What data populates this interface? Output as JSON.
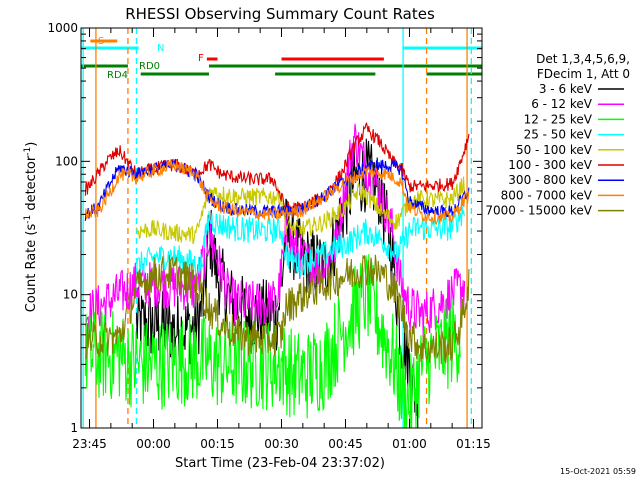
{
  "chart_data": {
    "type": "line",
    "title": "RHESSI Observing Summary Count Rates",
    "xlabel": "Start Time (23-Feb-04 23:37:02)",
    "ylabel_main": "Count Rate (s",
    "ylabel_sup1": "-1",
    "ylabel_mid": " detector",
    "ylabel_sup2": "-1",
    "ylabel_end": ")",
    "y_scale": "log",
    "ylim": [
      1,
      1000
    ],
    "xlim_min": [
      -17.0,
      77.0
    ],
    "x_tick_labels": [
      "23:45",
      "00:00",
      "00:15",
      "00:30",
      "00:45",
      "01:00",
      "01:15"
    ],
    "x_tick_minutes": [
      -15,
      0,
      15,
      30,
      45,
      60,
      75
    ],
    "y_tick_labels": [
      "1",
      "10",
      "100",
      "1000"
    ],
    "y_tick_values": [
      1,
      10,
      100,
      1000
    ],
    "timestamp": "15-Oct-2021 05:59",
    "legend": {
      "header": [
        "Det 1,3,4,5,6,9,",
        "FDecim 1, Att 0"
      ],
      "entries": [
        {
          "label": "3 - 6 keV",
          "color": "#000000"
        },
        {
          "label": "6 - 12 keV",
          "color": "#ff00ff"
        },
        {
          "label": "12 - 25 keV",
          "color": "#00ff00"
        },
        {
          "label": "25 - 50 keV",
          "color": "#00ffff"
        },
        {
          "label": "50 - 100 keV",
          "color": "#c8c800"
        },
        {
          "label": "100 - 300 keV",
          "color": "#e00000"
        },
        {
          "label": "300 - 800 keV",
          "color": "#0000ff"
        },
        {
          "label": "800 - 7000 keV",
          "color": "#ff8000"
        },
        {
          "label": "7000 - 15000 keV",
          "color": "#808000"
        }
      ]
    },
    "flag_labels": {
      "saa": "S",
      "night": "N",
      "flare": "F",
      "rd0": "RD0",
      "rd4": "RD4"
    },
    "flag_bars": {
      "saa": {
        "color": "#ff8000",
        "intervals": [
          [
            -14.8,
            -8.5
          ]
        ]
      },
      "night": {
        "color": "#00ffff",
        "intervals": [
          [
            -17.0,
            -3.5
          ],
          [
            58.5,
            77.0
          ]
        ]
      },
      "flare": {
        "color": "#ff0000",
        "intervals": [
          [
            12.5,
            15.0
          ],
          [
            30.0,
            54.0
          ]
        ]
      },
      "rd0": {
        "color": "#008000",
        "intervals": [
          [
            -17.0,
            -6.0
          ],
          [
            13.0,
            77.0
          ]
        ]
      },
      "rd4": {
        "color": "#008000",
        "intervals": [
          [
            -3.0,
            13.0
          ],
          [
            28.5,
            52.0
          ],
          [
            64.0,
            77.0
          ]
        ]
      }
    },
    "vertical_lines": [
      {
        "minute": -16.5,
        "color": "#00ffff",
        "style": "solid"
      },
      {
        "minute": -13.5,
        "color": "#ff8000",
        "style": "solid"
      },
      {
        "minute": -6.0,
        "color": "#ff8000",
        "style": "dashed"
      },
      {
        "minute": -4.0,
        "color": "#00ffff",
        "style": "dashed"
      },
      {
        "minute": 58.5,
        "color": "#00ffff",
        "style": "solid"
      },
      {
        "minute": 64.0,
        "color": "#ff8000",
        "style": "dashed"
      },
      {
        "minute": 73.5,
        "color": "#ff8000",
        "style": "solid"
      },
      {
        "minute": 74.5,
        "color": "#00ffff",
        "style": "dashed"
      }
    ],
    "series": [
      {
        "name": "3 - 6 keV",
        "color": "#000000",
        "noise": 0.28,
        "points": [
          [
            -4,
            6
          ],
          [
            0,
            6
          ],
          [
            5,
            5.5
          ],
          [
            10,
            5.6
          ],
          [
            12,
            10
          ],
          [
            13,
            30
          ],
          [
            15,
            14
          ],
          [
            18,
            9
          ],
          [
            22,
            7
          ],
          [
            26,
            7
          ],
          [
            29,
            7
          ],
          [
            30,
            12
          ],
          [
            31,
            30
          ],
          [
            35,
            18
          ],
          [
            40,
            16
          ],
          [
            42,
            22
          ],
          [
            44,
            40
          ],
          [
            47,
            70
          ],
          [
            50,
            80
          ],
          [
            53,
            60
          ],
          [
            56,
            20
          ],
          [
            58,
            5
          ],
          [
            60,
            3
          ],
          [
            61,
            2
          ],
          [
            62,
            1.6
          ]
        ]
      },
      {
        "name": "6 - 12 keV",
        "color": "#ff00ff",
        "noise": 0.18,
        "points": [
          [
            -16,
            7
          ],
          [
            -4,
            12
          ],
          [
            0,
            12
          ],
          [
            6,
            11.5
          ],
          [
            10,
            11
          ],
          [
            12,
            20
          ],
          [
            13,
            29
          ],
          [
            15,
            18
          ],
          [
            18,
            9
          ],
          [
            22,
            8.5
          ],
          [
            26,
            8.5
          ],
          [
            29,
            9
          ],
          [
            30,
            15
          ],
          [
            31,
            28
          ],
          [
            35,
            18
          ],
          [
            40,
            16
          ],
          [
            43,
            25
          ],
          [
            45,
            70
          ],
          [
            47,
            150
          ],
          [
            50,
            90
          ],
          [
            53,
            60
          ],
          [
            56,
            30
          ],
          [
            58,
            12
          ],
          [
            60,
            8
          ],
          [
            63,
            7
          ],
          [
            66,
            8
          ],
          [
            70,
            10
          ],
          [
            73,
            12
          ]
        ]
      },
      {
        "name": "12 - 25 keV",
        "color": "#00ff00",
        "noise": 0.35,
        "points": [
          [
            -16,
            3.5
          ],
          [
            -8,
            3.5
          ],
          [
            -4,
            3
          ],
          [
            0,
            3
          ],
          [
            6,
            3.2
          ],
          [
            10,
            3.3
          ],
          [
            13,
            3.2
          ],
          [
            16,
            3
          ],
          [
            20,
            3
          ],
          [
            26,
            3
          ],
          [
            30,
            3
          ],
          [
            33,
            2.5
          ],
          [
            36,
            2.5
          ],
          [
            40,
            3
          ],
          [
            45,
            6
          ],
          [
            50,
            10
          ],
          [
            53,
            6
          ],
          [
            56,
            3.5
          ],
          [
            58,
            2
          ],
          [
            60,
            1.5
          ],
          [
            63,
            3
          ],
          [
            68,
            4
          ],
          [
            72,
            5
          ]
        ]
      },
      {
        "name": "25 - 50 keV",
        "color": "#00ffff",
        "noise": 0.1,
        "points": [
          [
            -4,
            16
          ],
          [
            0,
            19
          ],
          [
            4,
            19.5
          ],
          [
            8,
            18
          ],
          [
            11,
            16
          ],
          [
            13,
            38
          ],
          [
            15,
            34
          ],
          [
            20,
            31
          ],
          [
            26,
            30
          ],
          [
            30,
            31
          ],
          [
            31,
            20
          ],
          [
            34,
            17
          ],
          [
            40,
            20
          ],
          [
            46,
            25
          ],
          [
            50,
            30
          ],
          [
            54,
            25
          ],
          [
            57,
            20
          ],
          [
            60,
            30
          ],
          [
            62,
            32
          ],
          [
            66,
            31
          ],
          [
            70,
            32
          ],
          [
            73,
            45
          ]
        ]
      },
      {
        "name": "50 - 100 keV",
        "color": "#c8c800",
        "noise": 0.07,
        "points": [
          [
            -4,
            30
          ],
          [
            0,
            31
          ],
          [
            5,
            29
          ],
          [
            10,
            28
          ],
          [
            13,
            60
          ],
          [
            15,
            58
          ],
          [
            20,
            54
          ],
          [
            26,
            54
          ],
          [
            30,
            55
          ],
          [
            31,
            33
          ],
          [
            34,
            30
          ],
          [
            40,
            35
          ],
          [
            45,
            45
          ],
          [
            48,
            60
          ],
          [
            50,
            55
          ],
          [
            54,
            40
          ],
          [
            57,
            35
          ],
          [
            60,
            50
          ],
          [
            63,
            52
          ],
          [
            66,
            51
          ],
          [
            70,
            52
          ],
          [
            73,
            70
          ]
        ]
      },
      {
        "name": "100 - 300 keV",
        "color": "#e00000",
        "noise": 0.05,
        "points": [
          [
            -16,
            60
          ],
          [
            -13,
            80
          ],
          [
            -11,
            100
          ],
          [
            -8,
            120
          ],
          [
            -4,
            80
          ],
          [
            0,
            88
          ],
          [
            5,
            95
          ],
          [
            10,
            80
          ],
          [
            13,
            95
          ],
          [
            16,
            80
          ],
          [
            20,
            75
          ],
          [
            24,
            73
          ],
          [
            28,
            74
          ],
          [
            31,
            45
          ],
          [
            35,
            45
          ],
          [
            40,
            55
          ],
          [
            44,
            80
          ],
          [
            47,
            130
          ],
          [
            50,
            175
          ],
          [
            53,
            140
          ],
          [
            56,
            100
          ],
          [
            58,
            90
          ],
          [
            60,
            65
          ],
          [
            63,
            65
          ],
          [
            66,
            66
          ],
          [
            70,
            68
          ],
          [
            72,
            100
          ],
          [
            74,
            160
          ]
        ]
      },
      {
        "name": "300 - 800 keV",
        "color": "#0000ff",
        "noise": 0.05,
        "points": [
          [
            -16,
            40
          ],
          [
            -13,
            45
          ],
          [
            -10,
            70
          ],
          [
            -8,
            90
          ],
          [
            -4,
            80
          ],
          [
            0,
            88
          ],
          [
            5,
            94
          ],
          [
            10,
            80
          ],
          [
            13,
            54
          ],
          [
            16,
            46
          ],
          [
            20,
            43
          ],
          [
            26,
            42
          ],
          [
            30,
            42
          ],
          [
            35,
            44
          ],
          [
            40,
            55
          ],
          [
            45,
            72
          ],
          [
            50,
            92
          ],
          [
            55,
            93
          ],
          [
            58,
            88
          ],
          [
            60,
            50
          ],
          [
            63,
            45
          ],
          [
            66,
            42
          ],
          [
            70,
            42
          ],
          [
            73,
            55
          ],
          [
            74,
            60
          ]
        ]
      },
      {
        "name": "800 - 7000 keV",
        "color": "#ff8000",
        "noise": 0.05,
        "points": [
          [
            -16,
            40
          ],
          [
            -13,
            42
          ],
          [
            -10,
            60
          ],
          [
            -8,
            80
          ],
          [
            -4,
            75
          ],
          [
            0,
            85
          ],
          [
            5,
            93
          ],
          [
            10,
            80
          ],
          [
            13,
            52
          ],
          [
            16,
            45
          ],
          [
            20,
            42
          ],
          [
            26,
            40
          ],
          [
            30,
            40
          ],
          [
            35,
            43
          ],
          [
            40,
            54
          ],
          [
            45,
            70
          ],
          [
            50,
            85
          ],
          [
            55,
            80
          ],
          [
            58,
            70
          ],
          [
            60,
            45
          ],
          [
            63,
            40
          ],
          [
            66,
            38
          ],
          [
            70,
            38
          ],
          [
            73,
            52
          ],
          [
            74,
            55
          ]
        ]
      },
      {
        "name": "7000 - 15000 keV",
        "color": "#808000",
        "noise": 0.14,
        "points": [
          [
            -16,
            4.5
          ],
          [
            -8,
            4.8
          ],
          [
            -4,
            11
          ],
          [
            0,
            14
          ],
          [
            5,
            15
          ],
          [
            10,
            12
          ],
          [
            13,
            8
          ],
          [
            16,
            6
          ],
          [
            20,
            5
          ],
          [
            26,
            4.5
          ],
          [
            30,
            5
          ],
          [
            31,
            8
          ],
          [
            35,
            10
          ],
          [
            40,
            12
          ],
          [
            45,
            14
          ],
          [
            50,
            16
          ],
          [
            54,
            14
          ],
          [
            57,
            10
          ],
          [
            60,
            5
          ],
          [
            63,
            4
          ],
          [
            66,
            4
          ],
          [
            70,
            4.2
          ],
          [
            72,
            6
          ],
          [
            74,
            12
          ]
        ]
      }
    ]
  }
}
